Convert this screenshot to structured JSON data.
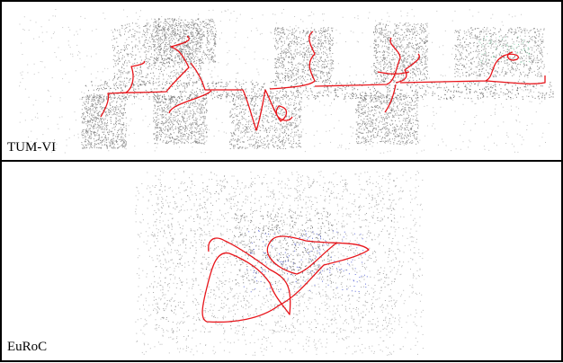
{
  "panels": [
    {
      "label": "TUM-VI"
    },
    {
      "label": "EuRoC"
    }
  ]
}
